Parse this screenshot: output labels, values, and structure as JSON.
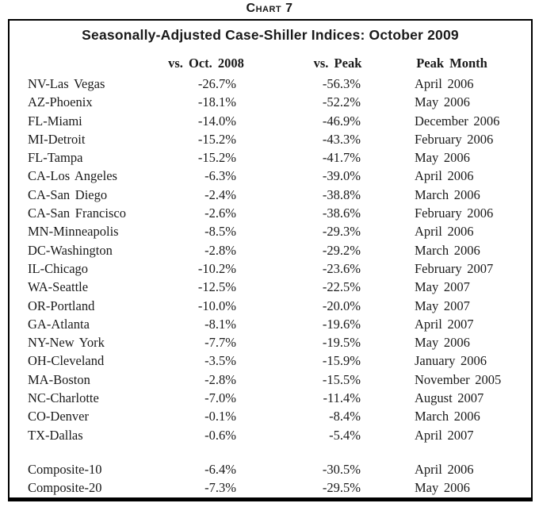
{
  "page": {
    "chart_label": "Chart 7"
  },
  "colors": {
    "text": "#1a1a1a",
    "border": "#000000",
    "background": "#ffffff"
  },
  "chart_data": {
    "type": "table",
    "title": "Seasonally-Adjusted Case-Shiller Indices: October 2009",
    "columns": [
      "",
      "vs. Oct. 2008",
      "vs. Peak",
      "Peak Month"
    ],
    "rows": [
      [
        "NV-Las Vegas",
        "-26.7%",
        "-56.3%",
        "April 2006"
      ],
      [
        "AZ-Phoenix",
        "-18.1%",
        "-52.2%",
        "May 2006"
      ],
      [
        "FL-Miami",
        "-14.0%",
        "-46.9%",
        "December 2006"
      ],
      [
        "MI-Detroit",
        "-15.2%",
        "-43.3%",
        "February 2006"
      ],
      [
        "FL-Tampa",
        "-15.2%",
        "-41.7%",
        "May 2006"
      ],
      [
        "CA-Los Angeles",
        "-6.3%",
        "-39.0%",
        "April 2006"
      ],
      [
        "CA-San Diego",
        "-2.4%",
        "-38.8%",
        "March 2006"
      ],
      [
        "CA-San Francisco",
        "-2.6%",
        "-38.6%",
        "February 2006"
      ],
      [
        "MN-Minneapolis",
        "-8.5%",
        "-29.3%",
        "April 2006"
      ],
      [
        "DC-Washington",
        "-2.8%",
        "-29.2%",
        "March 2006"
      ],
      [
        "IL-Chicago",
        "-10.2%",
        "-23.6%",
        "February 2007"
      ],
      [
        "WA-Seattle",
        "-12.5%",
        "-22.5%",
        "May 2007"
      ],
      [
        "OR-Portland",
        "-10.0%",
        "-20.0%",
        "May 2007"
      ],
      [
        "GA-Atlanta",
        "-8.1%",
        "-19.6%",
        "April 2007"
      ],
      [
        "NY-New York",
        "-7.7%",
        "-19.5%",
        "May 2006"
      ],
      [
        "OH-Cleveland",
        "-3.5%",
        "-15.9%",
        "January 2006"
      ],
      [
        "MA-Boston",
        "-2.8%",
        "-15.5%",
        "November 2005"
      ],
      [
        "NC-Charlotte",
        "-7.0%",
        "-11.4%",
        "August 2007"
      ],
      [
        "CO-Denver",
        "-0.1%",
        "-8.4%",
        "March 2006"
      ],
      [
        "TX-Dallas",
        "-0.6%",
        "-5.4%",
        "April 2007"
      ]
    ],
    "composite_rows": [
      [
        "Composite-10",
        "-6.4%",
        "-30.5%",
        "April 2006"
      ],
      [
        "Composite-20",
        "-7.3%",
        "-29.5%",
        "May 2006"
      ]
    ],
    "layout": {
      "grid": "off",
      "legend": "none",
      "note": "static data table with boxed border, serif body text, bold sans-serif title"
    }
  }
}
